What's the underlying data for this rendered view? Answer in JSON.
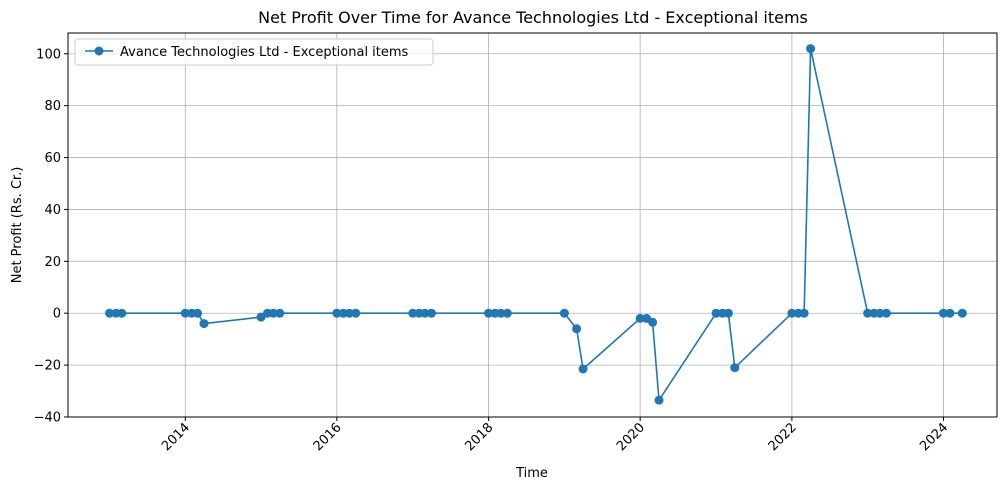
{
  "chart_data": {
    "type": "line",
    "title": "Net Profit Over Time for Avance Technologies Ltd - Exceptional items",
    "xlabel": "Time",
    "ylabel": "Net Profit (Rs. Cr.)",
    "xlim": [
      "2012-06-15",
      "2024-09-15"
    ],
    "ylim": [
      -40,
      108
    ],
    "x_ticks": [
      "2014",
      "2016",
      "2018",
      "2020",
      "2022",
      "2024"
    ],
    "y_ticks": [
      -40,
      -20,
      0,
      20,
      40,
      60,
      80,
      100
    ],
    "grid": true,
    "legend_position": "top-left",
    "color": "#1f77b4",
    "series": [
      {
        "name": "Avance Technologies Ltd - Exceptional items",
        "points": [
          {
            "x": "2013-01-01",
            "y": 0
          },
          {
            "x": "2013-02-01",
            "y": 0
          },
          {
            "x": "2013-03-01",
            "y": 0
          },
          {
            "x": "2014-01-01",
            "y": 0
          },
          {
            "x": "2014-02-01",
            "y": 0
          },
          {
            "x": "2014-03-01",
            "y": 0
          },
          {
            "x": "2014-04-01",
            "y": -4
          },
          {
            "x": "2015-01-01",
            "y": -1.5
          },
          {
            "x": "2015-02-01",
            "y": 0
          },
          {
            "x": "2015-03-01",
            "y": 0
          },
          {
            "x": "2015-04-01",
            "y": 0
          },
          {
            "x": "2016-01-01",
            "y": 0
          },
          {
            "x": "2016-02-01",
            "y": 0
          },
          {
            "x": "2016-03-01",
            "y": 0
          },
          {
            "x": "2016-04-01",
            "y": 0
          },
          {
            "x": "2017-01-01",
            "y": 0
          },
          {
            "x": "2017-02-01",
            "y": 0
          },
          {
            "x": "2017-03-01",
            "y": 0
          },
          {
            "x": "2017-04-01",
            "y": 0
          },
          {
            "x": "2018-01-01",
            "y": 0
          },
          {
            "x": "2018-02-01",
            "y": 0
          },
          {
            "x": "2018-03-01",
            "y": 0
          },
          {
            "x": "2018-04-01",
            "y": 0
          },
          {
            "x": "2019-01-01",
            "y": 0
          },
          {
            "x": "2019-03-01",
            "y": -6
          },
          {
            "x": "2019-04-01",
            "y": -21.5
          },
          {
            "x": "2020-01-01",
            "y": -2
          },
          {
            "x": "2020-02-01",
            "y": -2
          },
          {
            "x": "2020-03-01",
            "y": -3.5
          },
          {
            "x": "2020-04-01",
            "y": -33.5
          },
          {
            "x": "2021-01-01",
            "y": 0
          },
          {
            "x": "2021-02-01",
            "y": 0
          },
          {
            "x": "2021-03-01",
            "y": 0
          },
          {
            "x": "2021-04-01",
            "y": -21
          },
          {
            "x": "2022-01-01",
            "y": 0
          },
          {
            "x": "2022-02-01",
            "y": 0
          },
          {
            "x": "2022-03-01",
            "y": 0
          },
          {
            "x": "2022-04-01",
            "y": 102
          },
          {
            "x": "2023-01-01",
            "y": 0
          },
          {
            "x": "2023-02-01",
            "y": 0
          },
          {
            "x": "2023-03-01",
            "y": 0
          },
          {
            "x": "2023-04-01",
            "y": 0
          },
          {
            "x": "2024-01-01",
            "y": 0
          },
          {
            "x": "2024-02-01",
            "y": 0
          },
          {
            "x": "2024-04-01",
            "y": 0
          }
        ]
      }
    ]
  }
}
